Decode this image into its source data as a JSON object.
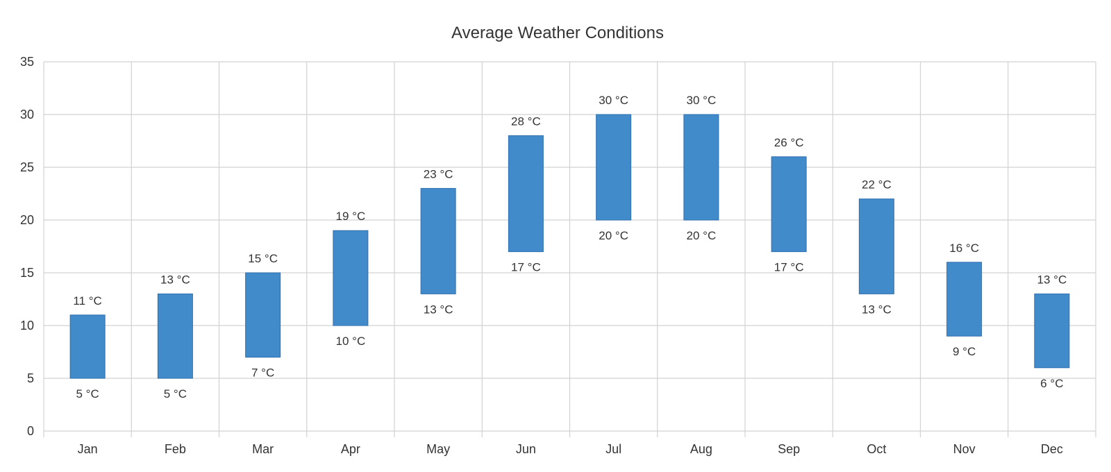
{
  "chart_data": {
    "type": "bar",
    "subtype": "range",
    "title": "Average Weather Conditions",
    "xlabel": "",
    "ylabel": "",
    "categories": [
      "Jan",
      "Feb",
      "Mar",
      "Apr",
      "May",
      "Jun",
      "Jul",
      "Aug",
      "Sep",
      "Oct",
      "Nov",
      "Dec"
    ],
    "series": [
      {
        "low": [
          5,
          5,
          7,
          10,
          13,
          17,
          20,
          20,
          17,
          13,
          9,
          6
        ],
        "high": [
          11,
          13,
          15,
          19,
          23,
          28,
          30,
          30,
          26,
          22,
          16,
          13
        ],
        "color": "#428bca"
      }
    ],
    "unit_suffix": " °C",
    "ylim": [
      0,
      35
    ],
    "y_ticks": [
      0,
      5,
      10,
      15,
      20,
      25,
      30,
      35
    ],
    "grid": true,
    "legend": "none"
  }
}
